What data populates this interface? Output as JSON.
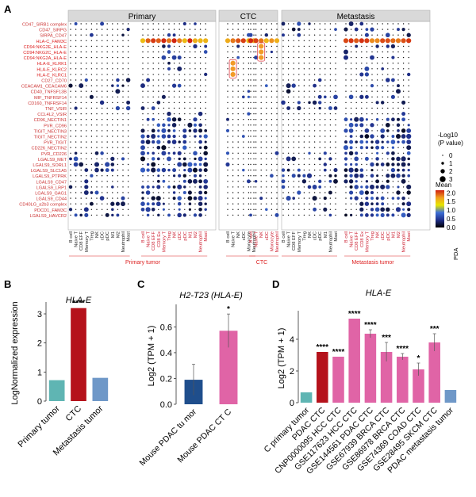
{
  "figure": {
    "panel_letters": [
      "A",
      "B",
      "C",
      "D"
    ]
  },
  "chart_data": [
    {
      "panel": "A",
      "type": "scatter",
      "subtype": "dot-plot",
      "facets": [
        "Primary",
        "CTC",
        "Metastasis"
      ],
      "rows": [
        {
          "l": "CD47",
          "r": "SIRB1 complex"
        },
        {
          "l": "CD47",
          "r": "SIRPG"
        },
        {
          "l": "SIRPA",
          "r": "CD47"
        },
        {
          "l": "HLA-C",
          "r": "FAM3C"
        },
        {
          "l": "CD94:NKG2E",
          "r": "HLA-E"
        },
        {
          "l": "CD94:NKG2C",
          "r": "HLA-E"
        },
        {
          "l": "CD94:NKG2A",
          "r": "HLA-E"
        },
        {
          "l": "HLA-E",
          "r": "KLRK1"
        },
        {
          "l": "HLA-E",
          "r": "KLRC2"
        },
        {
          "l": "HLA-E",
          "r": "KLRC1"
        },
        {
          "l": "CD27",
          "r": "CD70"
        },
        {
          "l": "CEACAM1",
          "r": "CEACAM6"
        },
        {
          "l": "CD40",
          "r": "TNFSF13B"
        },
        {
          "l": "MIF",
          "r": "TNFRSF14"
        },
        {
          "l": "CD160",
          "r": "TNFRSF14"
        },
        {
          "l": "TNF",
          "r": "VSIR"
        },
        {
          "l": "CCL4L2",
          "r": "VSIR"
        },
        {
          "l": "CD96",
          "r": "NECTIN1"
        },
        {
          "l": "PVR",
          "r": "CD96"
        },
        {
          "l": "TIGIT",
          "r": "NECTIN3"
        },
        {
          "l": "TIGIT",
          "r": "NECTIN2"
        },
        {
          "l": "PVR",
          "r": "TIGIT"
        },
        {
          "l": "CD226",
          "r": "NECTIN2"
        },
        {
          "l": "PVR",
          "r": "CD226"
        },
        {
          "l": "LGALS9",
          "r": "MET"
        },
        {
          "l": "LGALS9",
          "r": "SORL1"
        },
        {
          "l": "LGALS9",
          "r": "SLC1A5"
        },
        {
          "l": "LGALS9",
          "r": "PTPRK"
        },
        {
          "l": "LGALS9",
          "r": "CD47"
        },
        {
          "l": "LGALS9",
          "r": "LRP1"
        },
        {
          "l": "LGALS9",
          "r": "GAG1"
        },
        {
          "l": "LGALS9",
          "r": "CD44"
        },
        {
          "l": "CD40LG",
          "r": "a2b3 complex"
        },
        {
          "l": "PDCD1",
          "r": "FAM3C"
        },
        {
          "l": "LGALS9",
          "r": "HAVCR2"
        }
      ],
      "col_groups": [
        {
          "facet": "Primary",
          "label": "Primary tumor",
          "cols": [
            "B cell",
            "Naive T",
            "CD8 EFF",
            "Memory T",
            "Treg",
            "NK",
            "cDC",
            "pDC",
            "M1",
            "M2",
            "Neutrophil",
            "Mast"
          ]
        },
        {
          "facet": "Primary",
          "label": "Primary tumor",
          "cols": [
            "B cell",
            "Naive T",
            "CD8 EFF",
            "CD8 Ex",
            "Memory T",
            "Treg",
            "NK",
            "cDC",
            "pDC",
            "M1",
            "M2",
            "Neutrophil",
            "Mast"
          ]
        },
        {
          "facet": "CTC",
          "label": "CTC",
          "cols": [
            "B cell",
            "Naive T",
            "NK",
            "cDC",
            "Monocyte",
            "Neutrophil"
          ]
        },
        {
          "facet": "CTC",
          "label": "CTC",
          "cols": [
            "B cell",
            "Naive T",
            "NK",
            "cDC",
            "Monocyte",
            "Neutrophil"
          ]
        },
        {
          "facet": "Metastasis",
          "label": "Metastasis tumor",
          "cols": [
            "B cell",
            "Naive T",
            "CD8 EFF",
            "Memory T",
            "Treg",
            "NK",
            "cDC",
            "pDC",
            "M1",
            "Neutrophil",
            "Mast"
          ]
        },
        {
          "facet": "Metastasis",
          "label": "Metastasis tumor",
          "cols": [
            "B cell",
            "Naive T",
            "CD8 EFF",
            "CD8 Ex",
            "Memory T",
            "Treg",
            "NK",
            "cDC",
            "pDC",
            "M1",
            "M2",
            "Neutrophil",
            "Mast"
          ]
        }
      ],
      "highlight_rows": [
        3,
        4,
        5,
        6,
        7,
        8,
        9
      ],
      "highlight": [
        {
          "group": 2,
          "col": 1,
          "rows": [
            7,
            8,
            9
          ]
        },
        {
          "group": 3,
          "col": 2,
          "rows": [
            4,
            5,
            6
          ]
        }
      ],
      "cell_values": [],
      "legend": {
        "size_title": "-Log10\n(P value)",
        "size_values": [
          0,
          1,
          2,
          3
        ],
        "color_title": "Mean",
        "color_ticks": [
          0.0,
          0.5,
          1.0,
          1.5,
          2.0
        ],
        "colors": [
          "#000000",
          "#1f2f8a",
          "#3d6fd6",
          "#e6e600",
          "#f0a020",
          "#d02010"
        ]
      },
      "corner_label": "PDA"
    },
    {
      "panel": "B",
      "type": "bar",
      "title": "HLA-E",
      "categories": [
        "Primary tumor",
        "CTC",
        "Metastasis tumor"
      ],
      "values": [
        0.72,
        3.2,
        0.8
      ],
      "colors": [
        "#5fb5b3",
        "#b5121b",
        "#6f98c8"
      ],
      "significance": [
        "",
        "****",
        ""
      ],
      "ylabel": "LogNormalized expression",
      "ylim": [
        0,
        3.3
      ],
      "yticks": [
        0,
        1,
        2,
        3
      ]
    },
    {
      "panel": "C",
      "type": "bar",
      "title": "H2-T23 (HLA-E)",
      "categories": [
        "Mouse PDAC tu mor",
        "Mouse  PDAC CT C"
      ],
      "values": [
        0.19,
        0.57
      ],
      "errors": [
        0.12,
        0.13
      ],
      "colors": [
        "#1f4e8c",
        "#e064a6"
      ],
      "significance": [
        "",
        "*"
      ],
      "ylabel": "Log2 (TPM + 1)",
      "ylim": [
        0,
        0.75
      ],
      "yticks": [
        0.0,
        0.2,
        0.4,
        0.6
      ]
    },
    {
      "panel": "D",
      "type": "bar",
      "title": "HLA-E",
      "categories": [
        "C primary tumor",
        "PDAC CTC",
        "CNP0000095 HCC CTC",
        "GSE117623 HCC CTC",
        "GSE144561 PDAC CTC",
        "GSE67939 BRCA CTC",
        "GSE86978 BRCA CTC",
        "GSE74369 COAD CTC",
        "GSE28495 SKCM CTC",
        "PDAC metastasis tumor"
      ],
      "values": [
        0.65,
        3.2,
        2.9,
        5.3,
        4.35,
        3.2,
        2.9,
        2.1,
        3.8,
        0.8
      ],
      "errors": [
        0,
        0,
        0,
        0,
        0.25,
        0.6,
        0.2,
        0.4,
        0.55,
        0
      ],
      "colors": [
        "#5fb5b3",
        "#b5121b",
        "#e064a6",
        "#e064a6",
        "#e064a6",
        "#e064a6",
        "#e064a6",
        "#e064a6",
        "#e064a6",
        "#6f98c8"
      ],
      "significance": [
        "",
        "****",
        "****",
        "****",
        "****",
        "***",
        "****",
        "*",
        "***",
        ""
      ],
      "ylabel": "Log2 (TPM + 1)",
      "ylim": [
        0,
        5.6
      ],
      "yticks": [
        0,
        2,
        4
      ]
    }
  ]
}
